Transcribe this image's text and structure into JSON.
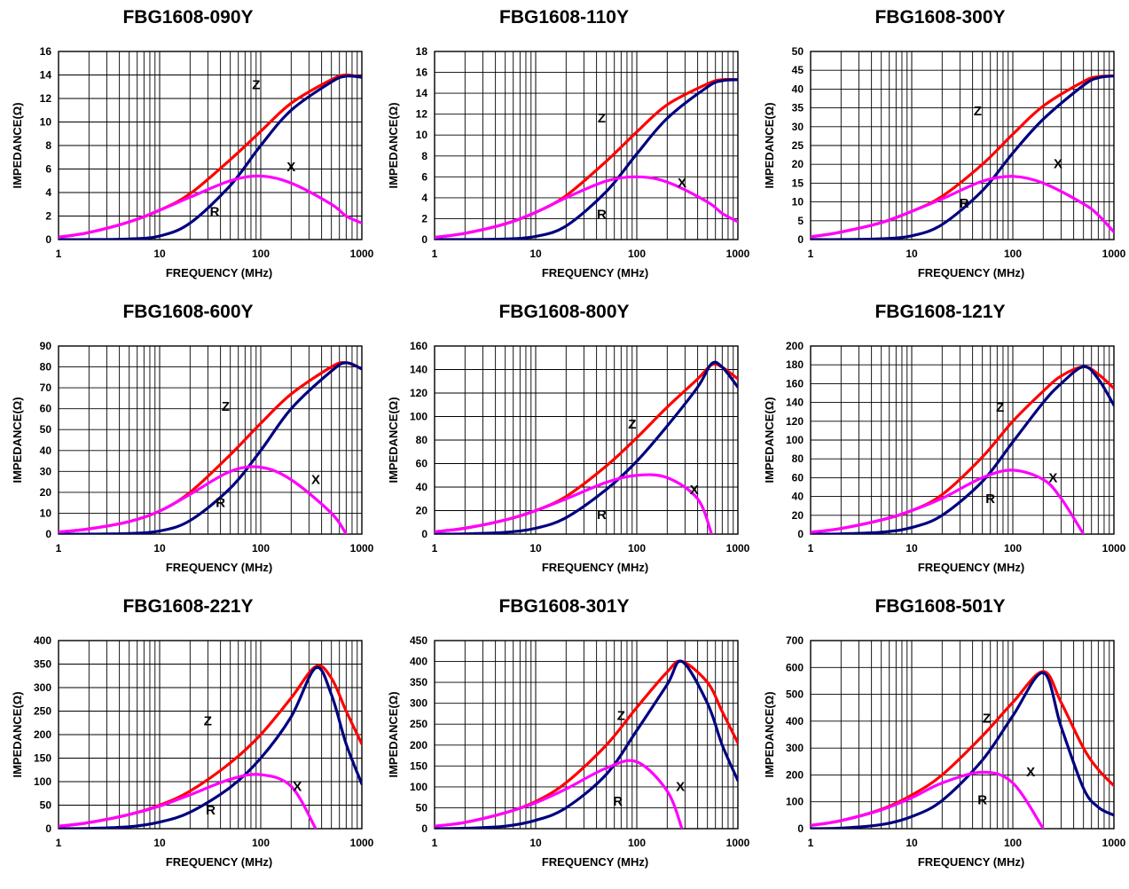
{
  "chart_data": [
    {
      "type": "line",
      "title": "FBG1608-090Y",
      "xlabel": "FREQUENCY (MHz)",
      "ylabel": "IMPEDANCE(Ω)",
      "xscale": "log",
      "xlim": [
        1,
        1000
      ],
      "xticks": [
        "1",
        "10",
        "100",
        "1000"
      ],
      "ylim": [
        0,
        16
      ],
      "yticks": [
        "0",
        "2",
        "4",
        "6",
        "8",
        "10",
        "12",
        "14",
        "16"
      ],
      "grid": true,
      "x": [
        1,
        2,
        5,
        10,
        20,
        50,
        100,
        200,
        500,
        700,
        1000
      ],
      "series": [
        {
          "name": "Z",
          "color": "#ff0000",
          "values": [
            0.2,
            0.6,
            1.5,
            2.5,
            3.9,
            6.8,
            9.2,
            11.6,
            13.6,
            14.0,
            13.8
          ]
        },
        {
          "name": "R",
          "color": "#000080",
          "values": [
            0,
            0,
            0.05,
            0.3,
            1.4,
            4.6,
            8.0,
            11.0,
            13.4,
            13.9,
            13.8
          ]
        },
        {
          "name": "X",
          "color": "#ff00ff",
          "values": [
            0.2,
            0.6,
            1.5,
            2.5,
            3.6,
            5.0,
            5.4,
            4.8,
            3.0,
            2.0,
            1.4
          ]
        }
      ],
      "labels": [
        {
          "text": "Z",
          "x": 90,
          "y": 12.8
        },
        {
          "text": "X",
          "x": 200,
          "y": 5.8
        },
        {
          "text": "R",
          "x": 35,
          "y": 2.0
        }
      ]
    },
    {
      "type": "line",
      "title": "FBG1608-110Y",
      "xlabel": "FREQUENCY (MHz)",
      "ylabel": "IMPEDANCE(Ω)",
      "xscale": "log",
      "xlim": [
        1,
        1000
      ],
      "xticks": [
        "1",
        "10",
        "100",
        "1000"
      ],
      "ylim": [
        0,
        18
      ],
      "yticks": [
        "0",
        "2",
        "4",
        "6",
        "8",
        "10",
        "12",
        "14",
        "16",
        "18"
      ],
      "grid": true,
      "x": [
        1,
        2,
        5,
        10,
        20,
        50,
        100,
        200,
        500,
        700,
        1000
      ],
      "series": [
        {
          "name": "Z",
          "color": "#ff0000",
          "values": [
            0.2,
            0.6,
            1.5,
            2.6,
            4.2,
            7.5,
            10.3,
            12.9,
            14.9,
            15.3,
            15.3
          ]
        },
        {
          "name": "R",
          "color": "#000080",
          "values": [
            0,
            0,
            0.05,
            0.3,
            1.3,
            4.6,
            8.2,
            11.6,
            14.6,
            15.2,
            15.3
          ]
        },
        {
          "name": "X",
          "color": "#ff00ff",
          "values": [
            0.2,
            0.6,
            1.5,
            2.6,
            4.0,
            5.6,
            6.0,
            5.5,
            3.6,
            2.5,
            1.7
          ]
        }
      ],
      "labels": [
        {
          "text": "Z",
          "x": 45,
          "y": 11.2
        },
        {
          "text": "X",
          "x": 280,
          "y": 5.0
        },
        {
          "text": "R",
          "x": 45,
          "y": 2.0
        }
      ]
    },
    {
      "type": "line",
      "title": "FBG1608-300Y",
      "xlabel": "FREQUENCY (MHz)",
      "ylabel": "IMPEDANCE(Ω)",
      "xscale": "log",
      "xlim": [
        1,
        1000
      ],
      "xticks": [
        "1",
        "10",
        "100",
        "1000"
      ],
      "ylim": [
        0,
        50
      ],
      "yticks": [
        "0",
        "5",
        "10",
        "15",
        "20",
        "25",
        "30",
        "35",
        "40",
        "45",
        "50"
      ],
      "grid": true,
      "x": [
        1,
        2,
        5,
        10,
        20,
        50,
        100,
        200,
        500,
        700,
        1000
      ],
      "series": [
        {
          "name": "Z",
          "color": "#ff0000",
          "values": [
            0.7,
            2.0,
            4.5,
            7.5,
            11.5,
            20.0,
            28.0,
            35.5,
            42.0,
            43.3,
            43.5
          ]
        },
        {
          "name": "R",
          "color": "#000080",
          "values": [
            0,
            0,
            0.2,
            1.0,
            4.0,
            13.0,
            23.0,
            32.0,
            41.0,
            43.0,
            43.5
          ]
        },
        {
          "name": "X",
          "color": "#ff00ff",
          "values": [
            0.7,
            2.0,
            4.5,
            7.5,
            10.8,
            15.5,
            16.8,
            15.0,
            9.5,
            6.5,
            2.0
          ]
        }
      ],
      "labels": [
        {
          "text": "Z",
          "x": 45,
          "y": 33.0
        },
        {
          "text": "X",
          "x": 280,
          "y": 19.0
        },
        {
          "text": "R",
          "x": 33,
          "y": 8.5
        }
      ]
    },
    {
      "type": "line",
      "title": "FBG1608-600Y",
      "xlabel": "FREQUENCY (MHz)",
      "ylabel": "IMPEDANCE(Ω)",
      "xscale": "log",
      "xlim": [
        1,
        1000
      ],
      "xticks": [
        "1",
        "10",
        "100",
        "1000"
      ],
      "ylim": [
        0,
        90
      ],
      "yticks": [
        "0",
        "10",
        "20",
        "30",
        "40",
        "50",
        "60",
        "70",
        "80",
        "90"
      ],
      "grid": true,
      "x": [
        1,
        2,
        5,
        10,
        20,
        50,
        100,
        200,
        500,
        700,
        1000
      ],
      "series": [
        {
          "name": "Z",
          "color": "#ff0000",
          "values": [
            1,
            2.5,
            6,
            11,
            20,
            38,
            53,
            67,
            80,
            82,
            79
          ]
        },
        {
          "name": "R",
          "color": "#000080",
          "values": [
            0,
            0,
            0.3,
            1.5,
            6.5,
            22,
            40,
            60,
            78,
            82,
            79
          ]
        },
        {
          "name": "X",
          "color": "#ff00ff",
          "values": [
            1,
            2.5,
            6,
            11,
            19,
            30,
            32,
            26,
            10,
            0,
            null
          ]
        }
      ],
      "labels": [
        {
          "text": "Z",
          "x": 45,
          "y": 59
        },
        {
          "text": "X",
          "x": 350,
          "y": 24
        },
        {
          "text": "R",
          "x": 40,
          "y": 13
        }
      ]
    },
    {
      "type": "line",
      "title": "FBG1608-800Y",
      "xlabel": "FREQUENCY (MHz)",
      "ylabel": "IMPEDANCE(Ω)",
      "xscale": "log",
      "xlim": [
        1,
        1000
      ],
      "xticks": [
        "1",
        "10",
        "100",
        "1000"
      ],
      "ylim": [
        0,
        160
      ],
      "yticks": [
        "0",
        "20",
        "40",
        "60",
        "80",
        "100",
        "120",
        "140",
        "160"
      ],
      "grid": true,
      "x": [
        1,
        2,
        5,
        10,
        20,
        50,
        100,
        200,
        400,
        550,
        700,
        1000
      ],
      "series": [
        {
          "name": "Z",
          "color": "#ff0000",
          "values": [
            2,
            5,
            12,
            20,
            32,
            58,
            82,
            108,
            132,
            144,
            142,
            132
          ]
        },
        {
          "name": "R",
          "color": "#000080",
          "values": [
            0,
            0.2,
            1.5,
            5,
            14,
            38,
            62,
            92,
            125,
            145,
            142,
            125
          ]
        },
        {
          "name": "X",
          "color": "#ff00ff",
          "values": [
            2,
            5,
            12,
            20,
            30,
            44,
            50,
            48,
            30,
            0,
            null,
            null
          ]
        }
      ],
      "labels": [
        {
          "text": "Z",
          "x": 90,
          "y": 90
        },
        {
          "text": "X",
          "x": 370,
          "y": 34
        },
        {
          "text": "R",
          "x": 45,
          "y": 13
        }
      ]
    },
    {
      "type": "line",
      "title": "FBG1608-121Y",
      "xlabel": "FREQUENCY (MHz)",
      "ylabel": "IMPEDANCE(Ω)",
      "xscale": "log",
      "xlim": [
        1,
        1000
      ],
      "xticks": [
        "1",
        "10",
        "100",
        "1000"
      ],
      "ylim": [
        0,
        200
      ],
      "yticks": [
        "0",
        "20",
        "40",
        "60",
        "80",
        "100",
        "120",
        "140",
        "160",
        "180",
        "200"
      ],
      "grid": true,
      "x": [
        1,
        2,
        5,
        10,
        20,
        50,
        100,
        200,
        300,
        500,
        700,
        1000
      ],
      "series": [
        {
          "name": "Z",
          "color": "#ff0000",
          "values": [
            2,
            6,
            15,
            25,
            42,
            82,
            120,
            152,
            168,
            178,
            170,
            155
          ]
        },
        {
          "name": "R",
          "color": "#000080",
          "values": [
            0,
            0.3,
            2,
            7,
            20,
            56,
            98,
            140,
            160,
            178,
            165,
            137
          ]
        },
        {
          "name": "X",
          "color": "#ff00ff",
          "values": [
            2,
            6,
            15,
            25,
            38,
            60,
            68,
            58,
            38,
            0,
            null,
            null
          ]
        }
      ],
      "labels": [
        {
          "text": "Z",
          "x": 75,
          "y": 130
        },
        {
          "text": "X",
          "x": 250,
          "y": 55
        },
        {
          "text": "R",
          "x": 60,
          "y": 33
        }
      ]
    },
    {
      "type": "line",
      "title": "FBG1608-221Y",
      "xlabel": "FREQUENCY (MHz)",
      "ylabel": "IMPEDANCE(Ω)",
      "xscale": "log",
      "xlim": [
        1,
        1000
      ],
      "xticks": [
        "1",
        "10",
        "100",
        "1000"
      ],
      "ylim": [
        0,
        400
      ],
      "yticks": [
        "0",
        "50",
        "100",
        "150",
        "200",
        "250",
        "300",
        "350",
        "400"
      ],
      "grid": true,
      "x": [
        1,
        2,
        5,
        10,
        20,
        50,
        100,
        200,
        350,
        500,
        700,
        1000
      ],
      "series": [
        {
          "name": "Z",
          "color": "#ff0000",
          "values": [
            5,
            13,
            30,
            50,
            80,
            140,
            200,
            278,
            345,
            320,
            250,
            180
          ]
        },
        {
          "name": "R",
          "color": "#000080",
          "values": [
            0,
            0.6,
            4,
            14,
            35,
            88,
            150,
            238,
            342,
            285,
            180,
            95
          ]
        },
        {
          "name": "X",
          "color": "#ff00ff",
          "values": [
            5,
            13,
            30,
            48,
            72,
            105,
            115,
            90,
            0,
            null,
            null,
            null
          ]
        }
      ],
      "labels": [
        {
          "text": "Z",
          "x": 30,
          "y": 220
        },
        {
          "text": "X",
          "x": 230,
          "y": 80
        },
        {
          "text": "R",
          "x": 32,
          "y": 30
        }
      ]
    },
    {
      "type": "line",
      "title": "FBG1608-301Y",
      "xlabel": "FREQUENCY (MHz)",
      "ylabel": "IMPEDANCE(Ω)",
      "xscale": "log",
      "xlim": [
        1,
        1000
      ],
      "xticks": [
        "1",
        "10",
        "100",
        "1000"
      ],
      "ylim": [
        0,
        450
      ],
      "yticks": [
        "0",
        "50",
        "100",
        "150",
        "200",
        "250",
        "300",
        "350",
        "400",
        "450"
      ],
      "grid": true,
      "x": [
        1,
        2,
        5,
        10,
        20,
        50,
        100,
        200,
        280,
        500,
        700,
        1000
      ],
      "series": [
        {
          "name": "Z",
          "color": "#ff0000",
          "values": [
            6,
            15,
            38,
            65,
            110,
            200,
            290,
            375,
            400,
            350,
            280,
            205
          ]
        },
        {
          "name": "R",
          "color": "#000080",
          "values": [
            0,
            1,
            6,
            20,
            50,
            130,
            235,
            345,
            400,
            300,
            200,
            115
          ]
        },
        {
          "name": "X",
          "color": "#ff00ff",
          "values": [
            6,
            15,
            38,
            62,
            95,
            145,
            160,
            90,
            0,
            null,
            null,
            null
          ]
        }
      ],
      "labels": [
        {
          "text": "Z",
          "x": 70,
          "y": 260
        },
        {
          "text": "X",
          "x": 270,
          "y": 90
        },
        {
          "text": "R",
          "x": 65,
          "y": 55
        }
      ]
    },
    {
      "type": "line",
      "title": "FBG1608-501Y",
      "xlabel": "FREQUENCY (MHz)",
      "ylabel": "IMPEDANCE(Ω)",
      "xscale": "log",
      "xlim": [
        1,
        1000
      ],
      "xticks": [
        "1",
        "10",
        "100",
        "1000"
      ],
      "ylim": [
        0,
        700
      ],
      "yticks": [
        "0",
        "100",
        "200",
        "300",
        "400",
        "500",
        "600",
        "700"
      ],
      "grid": true,
      "x": [
        1,
        2,
        5,
        10,
        20,
        50,
        100,
        200,
        300,
        500,
        700,
        1000
      ],
      "series": [
        {
          "name": "Z",
          "color": "#ff0000",
          "values": [
            12,
            30,
            72,
            125,
            200,
            345,
            470,
            585,
            470,
            300,
            220,
            160
          ]
        },
        {
          "name": "R",
          "color": "#000080",
          "values": [
            0,
            2,
            15,
            45,
            105,
            255,
            420,
            580,
            380,
            150,
            80,
            50
          ]
        },
        {
          "name": "X",
          "color": "#ff00ff",
          "values": [
            12,
            30,
            70,
            115,
            170,
            210,
            170,
            0,
            null,
            null,
            null,
            null
          ]
        }
      ],
      "labels": [
        {
          "text": "Z",
          "x": 55,
          "y": 395
        },
        {
          "text": "X",
          "x": 150,
          "y": 195
        },
        {
          "text": "R",
          "x": 50,
          "y": 90
        }
      ]
    }
  ]
}
